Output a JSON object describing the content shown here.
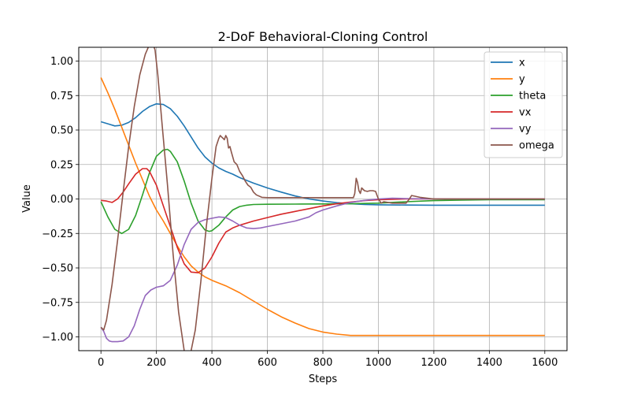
{
  "chart_data": {
    "type": "line",
    "title": "2-DoF Behavioral-Cloning Control",
    "xlabel": "Steps",
    "ylabel": "Value",
    "xlim": [
      -80,
      1680
    ],
    "ylim": [
      -1.1,
      1.1
    ],
    "xticks": [
      0,
      200,
      400,
      600,
      800,
      1000,
      1200,
      1400,
      1600
    ],
    "yticks": [
      -1.0,
      -0.75,
      -0.5,
      -0.25,
      0.0,
      0.25,
      0.5,
      0.75,
      1.0
    ],
    "xtick_labels": [
      "0",
      "200",
      "400",
      "600",
      "800",
      "1000",
      "1200",
      "1400",
      "1600"
    ],
    "ytick_labels": [
      "−1.00",
      "−0.75",
      "−0.50",
      "−0.25",
      "0.00",
      "0.25",
      "0.50",
      "0.75",
      "1.00"
    ],
    "grid": true,
    "legend_position": "top-right",
    "series": [
      {
        "name": "x",
        "color": "#1f77b4",
        "x": [
          0,
          25,
          50,
          75,
          100,
          125,
          150,
          175,
          200,
          225,
          250,
          275,
          300,
          325,
          350,
          375,
          400,
          425,
          450,
          475,
          500,
          550,
          600,
          650,
          700,
          750,
          800,
          850,
          900,
          950,
          1000,
          1100,
          1200,
          1300,
          1400,
          1500,
          1600
        ],
        "y": [
          0.56,
          0.545,
          0.53,
          0.535,
          0.555,
          0.59,
          0.635,
          0.67,
          0.69,
          0.685,
          0.655,
          0.6,
          0.53,
          0.45,
          0.37,
          0.305,
          0.26,
          0.225,
          0.2,
          0.18,
          0.155,
          0.115,
          0.08,
          0.05,
          0.022,
          0.0,
          -0.015,
          -0.027,
          -0.035,
          -0.04,
          -0.042,
          -0.044,
          -0.045,
          -0.045,
          -0.045,
          -0.045,
          -0.045
        ]
      },
      {
        "name": "y",
        "color": "#ff7f0e",
        "x": [
          0,
          25,
          50,
          75,
          100,
          125,
          150,
          175,
          200,
          225,
          250,
          275,
          300,
          325,
          350,
          375,
          400,
          450,
          500,
          550,
          600,
          650,
          700,
          750,
          800,
          850,
          900,
          950,
          1000,
          1100,
          1200,
          1300,
          1400,
          1500,
          1600
        ],
        "y": [
          0.88,
          0.77,
          0.65,
          0.52,
          0.39,
          0.26,
          0.14,
          0.02,
          -0.08,
          -0.16,
          -0.25,
          -0.34,
          -0.42,
          -0.485,
          -0.53,
          -0.565,
          -0.59,
          -0.63,
          -0.68,
          -0.74,
          -0.8,
          -0.855,
          -0.9,
          -0.94,
          -0.965,
          -0.98,
          -0.99,
          -0.99,
          -0.99,
          -0.99,
          -0.99,
          -0.99,
          -0.99,
          -0.99,
          -0.99
        ]
      },
      {
        "name": "theta",
        "color": "#2ca02c",
        "x": [
          0,
          25,
          50,
          75,
          100,
          125,
          150,
          175,
          200,
          225,
          240,
          250,
          275,
          300,
          325,
          350,
          375,
          390,
          400,
          425,
          450,
          475,
          500,
          525,
          550,
          600,
          700,
          800,
          900,
          1000,
          1100,
          1200,
          1300,
          1400,
          1500,
          1600
        ],
        "y": [
          -0.02,
          -0.13,
          -0.22,
          -0.25,
          -0.22,
          -0.12,
          0.03,
          0.19,
          0.31,
          0.355,
          0.36,
          0.345,
          0.27,
          0.13,
          -0.03,
          -0.16,
          -0.225,
          -0.235,
          -0.23,
          -0.19,
          -0.13,
          -0.08,
          -0.055,
          -0.045,
          -0.04,
          -0.038,
          -0.037,
          -0.036,
          -0.035,
          -0.03,
          -0.02,
          -0.012,
          -0.008,
          -0.006,
          -0.005,
          -0.005
        ]
      },
      {
        "name": "vx",
        "color": "#d62728",
        "x": [
          0,
          20,
          40,
          60,
          80,
          100,
          125,
          150,
          165,
          175,
          200,
          225,
          250,
          275,
          300,
          325,
          350,
          375,
          400,
          425,
          450,
          475,
          500,
          550,
          600,
          650,
          700,
          750,
          800,
          850,
          900,
          950,
          1000,
          1100,
          1200,
          1300,
          1400,
          1500,
          1600
        ],
        "y": [
          -0.01,
          -0.015,
          -0.025,
          0.0,
          0.05,
          0.11,
          0.18,
          0.22,
          0.22,
          0.2,
          0.1,
          -0.05,
          -0.2,
          -0.35,
          -0.47,
          -0.53,
          -0.535,
          -0.5,
          -0.42,
          -0.32,
          -0.24,
          -0.21,
          -0.19,
          -0.16,
          -0.135,
          -0.11,
          -0.09,
          -0.07,
          -0.05,
          -0.035,
          -0.022,
          -0.012,
          -0.005,
          0.0,
          0.0,
          0.0,
          0.0,
          0.0,
          0.0
        ]
      },
      {
        "name": "vy",
        "color": "#9467bd",
        "x": [
          0,
          10,
          20,
          30,
          40,
          60,
          80,
          100,
          120,
          140,
          160,
          180,
          200,
          225,
          250,
          275,
          300,
          325,
          350,
          375,
          400,
          425,
          450,
          475,
          500,
          525,
          550,
          575,
          600,
          650,
          700,
          750,
          775,
          800,
          850,
          900,
          950,
          1000,
          1050,
          1100,
          1200,
          1300,
          1400,
          1500,
          1600
        ],
        "y": [
          -0.93,
          -0.96,
          -1.01,
          -1.03,
          -1.035,
          -1.035,
          -1.03,
          -1.0,
          -0.92,
          -0.8,
          -0.7,
          -0.66,
          -0.64,
          -0.63,
          -0.59,
          -0.48,
          -0.33,
          -0.22,
          -0.17,
          -0.15,
          -0.14,
          -0.13,
          -0.135,
          -0.16,
          -0.19,
          -0.21,
          -0.215,
          -0.21,
          -0.2,
          -0.18,
          -0.16,
          -0.13,
          -0.1,
          -0.08,
          -0.05,
          -0.025,
          -0.01,
          0.0,
          0.005,
          0.003,
          0.0,
          0.0,
          0.0,
          0.0,
          0.0
        ]
      },
      {
        "name": "omega",
        "color": "#8c564b",
        "x": [
          0,
          10,
          20,
          40,
          60,
          80,
          100,
          120,
          140,
          160,
          175,
          185,
          195,
          205,
          220,
          240,
          260,
          280,
          300,
          320,
          340,
          360,
          380,
          400,
          415,
          425,
          430,
          435,
          440,
          445,
          450,
          455,
          460,
          465,
          470,
          480,
          490,
          500,
          510,
          520,
          530,
          540,
          550,
          560,
          580,
          600,
          700,
          800,
          900,
          910,
          915,
          920,
          925,
          930,
          935,
          940,
          950,
          960,
          970,
          980,
          990,
          1000,
          1010,
          1020,
          1050,
          1100,
          1110,
          1120,
          1150,
          1200,
          1300,
          1400,
          1500,
          1600
        ],
        "y": [
          -0.93,
          -0.95,
          -0.88,
          -0.62,
          -0.3,
          0.05,
          0.38,
          0.67,
          0.9,
          1.05,
          1.12,
          1.14,
          1.08,
          0.9,
          0.55,
          0.1,
          -0.4,
          -0.82,
          -1.1,
          -1.15,
          -0.95,
          -0.6,
          -0.2,
          0.15,
          0.38,
          0.44,
          0.46,
          0.45,
          0.44,
          0.43,
          0.46,
          0.44,
          0.37,
          0.38,
          0.34,
          0.27,
          0.25,
          0.2,
          0.17,
          0.13,
          0.1,
          0.085,
          0.05,
          0.03,
          0.012,
          0.01,
          0.01,
          0.01,
          0.01,
          0.01,
          0.04,
          0.15,
          0.12,
          0.06,
          0.04,
          0.08,
          0.06,
          0.055,
          0.06,
          0.06,
          0.055,
          0.0,
          -0.03,
          -0.02,
          -0.03,
          -0.03,
          -0.005,
          0.025,
          0.012,
          0.0,
          0.0,
          0.0,
          0.0,
          0.0
        ]
      }
    ]
  }
}
